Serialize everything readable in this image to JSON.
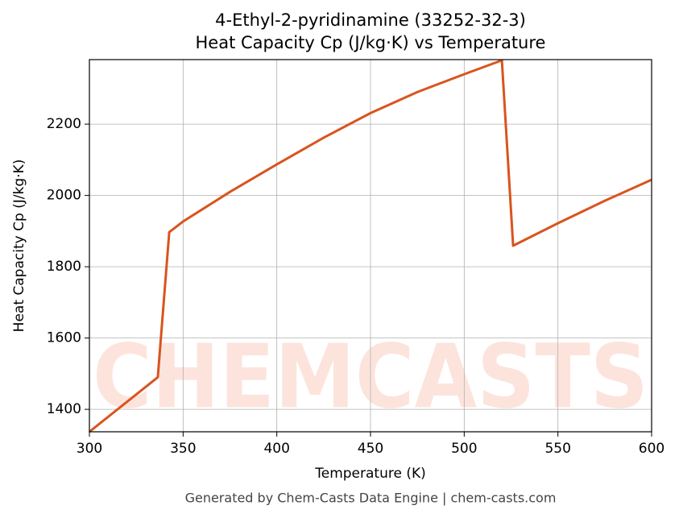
{
  "chart_data": {
    "type": "line",
    "title": "4-Ethyl-2-pyridinamine (33252-32-3)",
    "subtitle": "Heat Capacity Cp (J/kg·K) vs Temperature",
    "x_label": "Temperature (K)",
    "y_label": "Heat Capacity Cp (J/kg·K)",
    "footer": "Generated by Chem-Casts Data Engine | chem-casts.com",
    "watermark": "CHEMCASTS",
    "x": [
      300,
      336.5,
      342.6,
      350,
      375,
      400,
      425,
      450,
      475,
      500,
      520.1,
      526.1,
      550,
      575,
      600
    ],
    "series": [
      {
        "name": "Cp",
        "color": "#d9541e",
        "values": [
          1337,
          1490,
          1897,
          1927,
          2010,
          2087,
          2162,
          2231,
          2290,
          2340,
          2379,
          1859,
          1922,
          1985,
          2044
        ]
      }
    ],
    "xlim": [
      300,
      600
    ],
    "xticks": [
      300,
      350,
      400,
      450,
      500,
      550,
      600
    ],
    "ylim": [
      1337,
      2381
    ],
    "yticks": [
      1400,
      1600,
      1800,
      2000,
      2200
    ],
    "grid": true
  }
}
